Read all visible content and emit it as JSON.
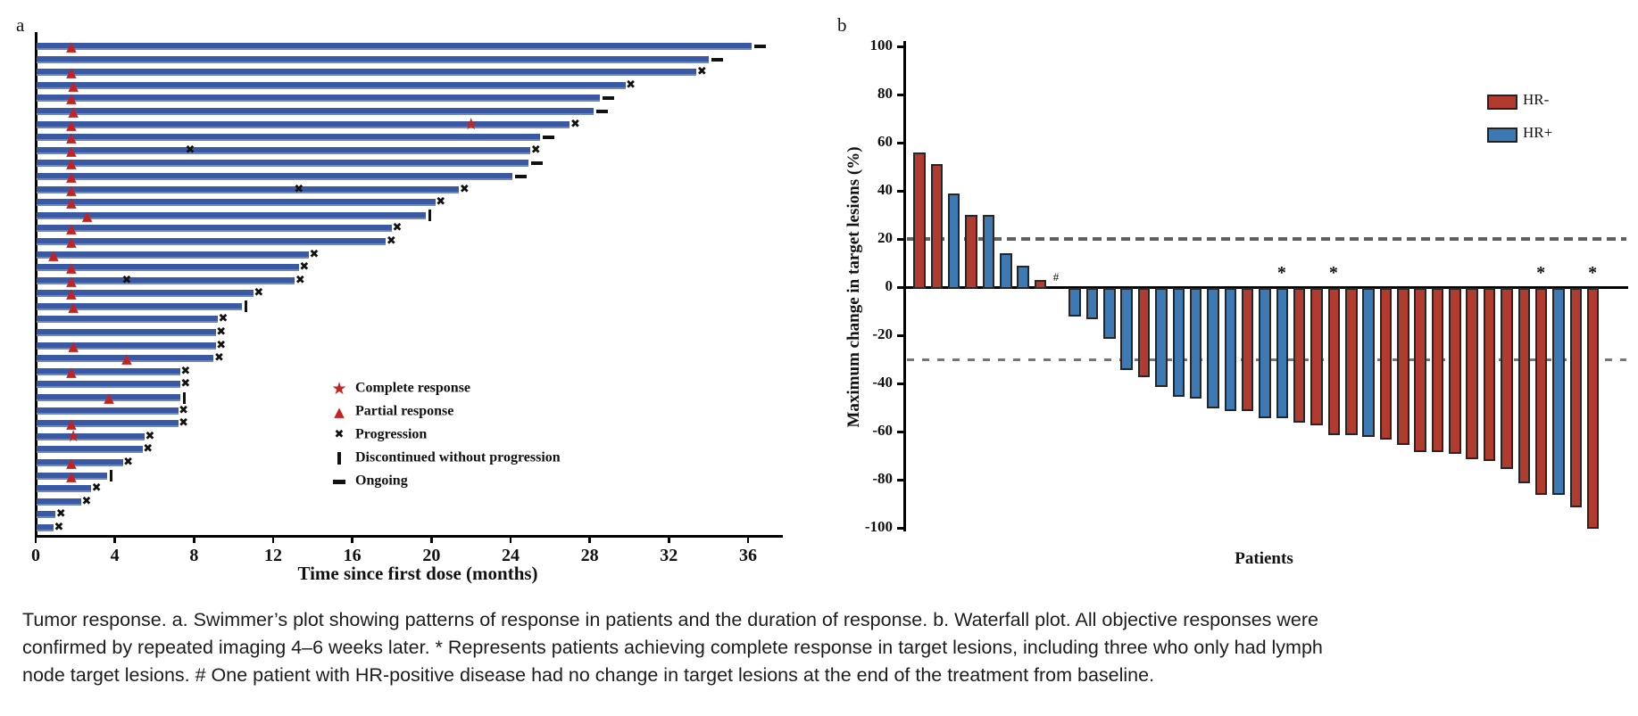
{
  "colors": {
    "swimmer_bar": "#3A59A4",
    "marker_red": "#C42320",
    "marker_black": "#111111",
    "hr_negative": "#B23B30",
    "hr_positive": "#3D79B3",
    "bar_border": "#262626",
    "ref_line_major": "#5F5F5F",
    "ref_line_minor": "#757575"
  },
  "chart_data": [
    {
      "type": "swimmer",
      "panel_label": "a",
      "xlabel": "Time since first dose (months)",
      "xlim": [
        0,
        37.6
      ],
      "x_ticks": [
        0,
        4,
        8,
        12,
        16,
        20,
        24,
        28,
        32,
        36
      ],
      "x_unit": "months",
      "legend": [
        {
          "glyph": "star",
          "label": "Complete response"
        },
        {
          "glyph": "triangle",
          "label": "Partial response"
        },
        {
          "glyph": "x",
          "label": "Progression"
        },
        {
          "glyph": "vbar",
          "label": "Discontinued without progression"
        },
        {
          "glyph": "dash",
          "label": "Ongoing"
        }
      ],
      "bars": [
        {
          "months": 36.2,
          "end": "ongoing",
          "pr": 1.8
        },
        {
          "months": 34.0,
          "end": "ongoing"
        },
        {
          "months": 33.4,
          "end": "progression",
          "pr": 1.8
        },
        {
          "months": 29.8,
          "end": "progression",
          "pr": 1.9
        },
        {
          "months": 28.5,
          "end": "ongoing",
          "pr": 1.8
        },
        {
          "months": 28.2,
          "end": "ongoing",
          "pr": 1.9
        },
        {
          "months": 27.0,
          "end": "progression",
          "pr": 1.8,
          "cr": 22.0
        },
        {
          "months": 25.5,
          "end": "ongoing",
          "pr": 1.8
        },
        {
          "months": 25.0,
          "end": "progression",
          "pr": 1.8,
          "mid_x": 7.8
        },
        {
          "months": 24.9,
          "end": "ongoing",
          "pr": 1.8
        },
        {
          "months": 24.1,
          "end": "ongoing",
          "pr": 1.8
        },
        {
          "months": 21.4,
          "end": "progression",
          "pr": 1.8,
          "mid_x": 13.3
        },
        {
          "months": 20.2,
          "end": "progression",
          "pr": 1.8
        },
        {
          "months": 19.7,
          "end": "discontinued",
          "pr": 2.6
        },
        {
          "months": 18.0,
          "end": "progression",
          "pr": 1.8
        },
        {
          "months": 17.7,
          "end": "progression",
          "pr": 1.8
        },
        {
          "months": 13.8,
          "end": "progression",
          "pr": 0.9
        },
        {
          "months": 13.3,
          "end": "progression",
          "pr": 1.8
        },
        {
          "months": 13.1,
          "end": "progression",
          "pr": 1.8,
          "mid_x": 4.6
        },
        {
          "months": 11.0,
          "end": "progression",
          "pr": 1.8
        },
        {
          "months": 10.4,
          "end": "discontinued",
          "pr": 1.9
        },
        {
          "months": 9.2,
          "end": "progression"
        },
        {
          "months": 9.1,
          "end": "progression"
        },
        {
          "months": 9.1,
          "end": "progression",
          "pr": 1.9
        },
        {
          "months": 9.0,
          "end": "progression",
          "pr": 4.6
        },
        {
          "months": 7.3,
          "end": "progression",
          "pr": 1.8
        },
        {
          "months": 7.3,
          "end": "progression"
        },
        {
          "months": 7.3,
          "end": "discontinued",
          "pr": 3.7
        },
        {
          "months": 7.2,
          "end": "progression"
        },
        {
          "months": 7.2,
          "end": "progression",
          "pr": 1.8
        },
        {
          "months": 5.5,
          "end": "progression",
          "cr": 1.9
        },
        {
          "months": 5.4,
          "end": "progression"
        },
        {
          "months": 4.4,
          "end": "progression",
          "pr": 1.8
        },
        {
          "months": 3.6,
          "end": "discontinued",
          "pr": 1.8
        },
        {
          "months": 2.8,
          "end": "progression"
        },
        {
          "months": 2.3,
          "end": "progression"
        },
        {
          "months": 1.0,
          "end": "progression"
        },
        {
          "months": 0.9,
          "end": "progression"
        }
      ]
    },
    {
      "type": "waterfall",
      "panel_label": "b",
      "ylabel": "Maximum change in target lesions (%)",
      "xlabel": "Patients",
      "ylim": [
        -100,
        100
      ],
      "y_ticks": [
        100,
        80,
        60,
        40,
        20,
        0,
        -20,
        -40,
        -60,
        -80,
        -100
      ],
      "reference_lines": [
        20,
        -30
      ],
      "legend": [
        {
          "name": "HR-",
          "color_key": "hr_negative"
        },
        {
          "name": "HR+",
          "color_key": "hr_positive"
        }
      ],
      "annotation_glyphs": {
        "complete_response": "*",
        "no_change": "#"
      },
      "patients": [
        {
          "change_pct": 56,
          "group": "HR-"
        },
        {
          "change_pct": 51,
          "group": "HR-"
        },
        {
          "change_pct": 39,
          "group": "HR+"
        },
        {
          "change_pct": 30,
          "group": "HR-"
        },
        {
          "change_pct": 30,
          "group": "HR+"
        },
        {
          "change_pct": 14,
          "group": "HR+"
        },
        {
          "change_pct": 9,
          "group": "HR+"
        },
        {
          "change_pct": 3,
          "group": "HR-"
        },
        {
          "change_pct": 0,
          "group": "HR+",
          "hash": true
        },
        {
          "change_pct": -12,
          "group": "HR+"
        },
        {
          "change_pct": -13,
          "group": "HR+"
        },
        {
          "change_pct": -21,
          "group": "HR+"
        },
        {
          "change_pct": -34,
          "group": "HR+"
        },
        {
          "change_pct": -37,
          "group": "HR-"
        },
        {
          "change_pct": -41,
          "group": "HR+"
        },
        {
          "change_pct": -45,
          "group": "HR+"
        },
        {
          "change_pct": -46,
          "group": "HR+"
        },
        {
          "change_pct": -50,
          "group": "HR+"
        },
        {
          "change_pct": -51,
          "group": "HR+"
        },
        {
          "change_pct": -51,
          "group": "HR-"
        },
        {
          "change_pct": -54,
          "group": "HR+"
        },
        {
          "change_pct": -54,
          "group": "HR+",
          "star": true
        },
        {
          "change_pct": -56,
          "group": "HR-"
        },
        {
          "change_pct": -57,
          "group": "HR-"
        },
        {
          "change_pct": -61,
          "group": "HR-",
          "star": true
        },
        {
          "change_pct": -61,
          "group": "HR-"
        },
        {
          "change_pct": -62,
          "group": "HR+"
        },
        {
          "change_pct": -63,
          "group": "HR-"
        },
        {
          "change_pct": -65,
          "group": "HR-"
        },
        {
          "change_pct": -68,
          "group": "HR-"
        },
        {
          "change_pct": -68,
          "group": "HR-"
        },
        {
          "change_pct": -69,
          "group": "HR-"
        },
        {
          "change_pct": -71,
          "group": "HR-"
        },
        {
          "change_pct": -72,
          "group": "HR-"
        },
        {
          "change_pct": -75,
          "group": "HR-"
        },
        {
          "change_pct": -81,
          "group": "HR-"
        },
        {
          "change_pct": -86,
          "group": "HR-",
          "star": true
        },
        {
          "change_pct": -86,
          "group": "HR+"
        },
        {
          "change_pct": -91,
          "group": "HR-"
        },
        {
          "change_pct": -100,
          "group": "HR-",
          "star": true
        }
      ]
    }
  ],
  "caption": {
    "lines": [
      "Tumor response. a. Swimmer’s plot showing patterns of response in patients and the duration of response. b. Waterfall plot. All objective responses were",
      "confirmed by repeated imaging 4–6 weeks later. * Represents patients achieving complete response in target lesions, including three who only had lymph",
      "node target lesions. # One patient with HR-positive disease had no change in target lesions at the end of the treatment from baseline."
    ]
  }
}
